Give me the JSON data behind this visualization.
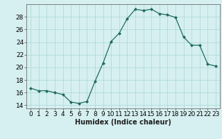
{
  "x": [
    0,
    1,
    2,
    3,
    4,
    5,
    6,
    7,
    8,
    9,
    10,
    11,
    12,
    13,
    14,
    15,
    16,
    17,
    18,
    19,
    20,
    21,
    22,
    23
  ],
  "y": [
    16.7,
    16.3,
    16.3,
    16.0,
    15.7,
    14.5,
    14.3,
    14.6,
    17.8,
    20.7,
    24.1,
    25.4,
    27.7,
    29.2,
    29.0,
    29.2,
    28.5,
    28.3,
    27.9,
    24.8,
    23.5,
    23.5,
    20.5,
    20.2
  ],
  "line_color": "#1e6b5a",
  "marker": "D",
  "marker_size": 2.0,
  "bg_color": "#d6eff0",
  "grid_color": "#a8d8d8",
  "xlabel": "Humidex (Indice chaleur)",
  "ylim": [
    13.5,
    30
  ],
  "xlim": [
    -0.5,
    23.5
  ],
  "yticks": [
    14,
    16,
    18,
    20,
    22,
    24,
    26,
    28
  ],
  "xticks": [
    0,
    1,
    2,
    3,
    4,
    5,
    6,
    7,
    8,
    9,
    10,
    11,
    12,
    13,
    14,
    15,
    16,
    17,
    18,
    19,
    20,
    21,
    22,
    23
  ],
  "xlabel_fontsize": 7,
  "tick_fontsize": 6.5
}
